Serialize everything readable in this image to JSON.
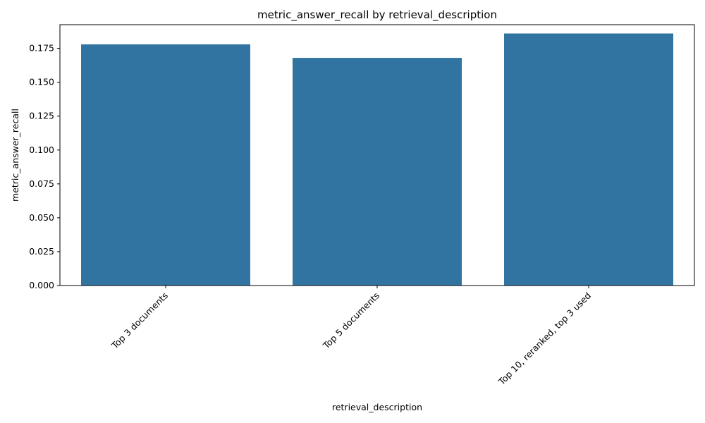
{
  "chart_data": {
    "type": "bar",
    "title": "metric_answer_recall by retrieval_description",
    "xlabel": "retrieval_description",
    "ylabel": "metric_answer_recall",
    "categories": [
      "Top 3 documents",
      "Top 5 documents",
      "Top 10, reranked, top 3 used"
    ],
    "values": [
      0.178,
      0.168,
      0.186
    ],
    "ylim": [
      0,
      0.1925
    ],
    "yticks": [
      "0.000",
      "0.025",
      "0.050",
      "0.075",
      "0.100",
      "0.125",
      "0.150",
      "0.175"
    ],
    "bar_color": "#3274a1",
    "grid": false,
    "legend": "none"
  }
}
